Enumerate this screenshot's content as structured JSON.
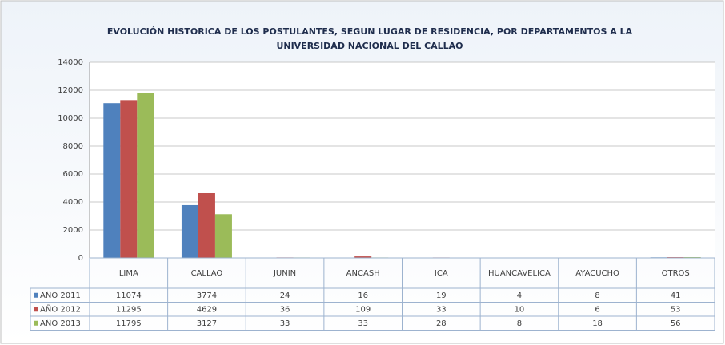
{
  "chart_data": {
    "type": "bar",
    "title": [
      "EVOLUCIÓN HISTORICA DE LOS POSTULANTES, SEGUN LUGAR DE RESIDENCIA, POR DEPARTAMENTOS A LA",
      "UNIVERSIDAD NACIONAL DEL CALLAO"
    ],
    "categories": [
      "LIMA",
      "CALLAO",
      "JUNIN",
      "ANCASH",
      "ICA",
      "HUANCAVELICA",
      "AYACUCHO",
      "OTROS"
    ],
    "series": [
      {
        "name": "AÑO 2011",
        "color": "#4f81bd",
        "values": [
          11074,
          3774,
          24,
          16,
          19,
          4,
          8,
          41
        ]
      },
      {
        "name": "AÑO 2012",
        "color": "#c0504d",
        "values": [
          11295,
          4629,
          36,
          109,
          33,
          10,
          6,
          53
        ]
      },
      {
        "name": "AÑO 2013",
        "color": "#9bbb59",
        "values": [
          11795,
          3127,
          33,
          33,
          28,
          8,
          18,
          56
        ]
      }
    ],
    "ylim": [
      0,
      14000
    ],
    "yticks": [
      0,
      2000,
      4000,
      6000,
      8000,
      10000,
      12000,
      14000
    ],
    "grid": true
  }
}
